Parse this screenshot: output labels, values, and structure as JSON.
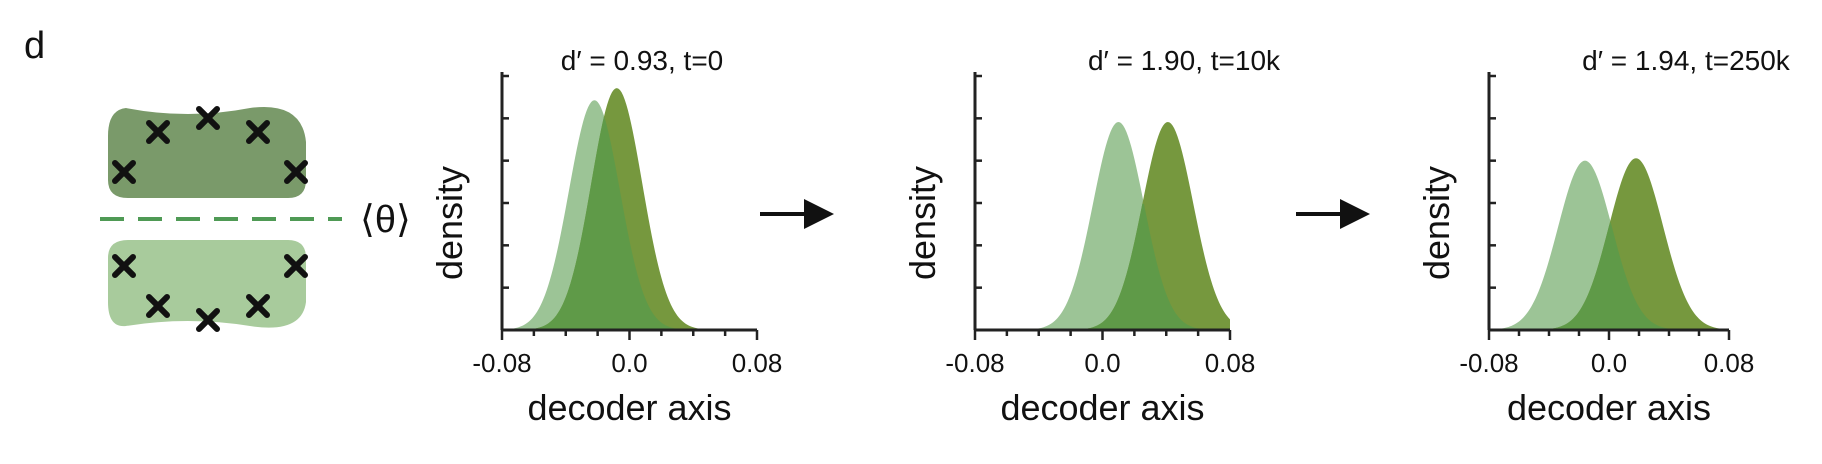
{
  "panel_label": "d",
  "schematic": {
    "boundary_label": "⟨θ⟩",
    "upper_color": "#7a9a6a",
    "lower_color": "#a8cb9c",
    "boundary_color": "#4f9a55",
    "marker_glyph": "cross-icon"
  },
  "arrow_glyph": "right-arrow-icon",
  "colors": {
    "class_a": "#9cc496",
    "class_b": "#76983e",
    "overlap": "#5f9a48"
  },
  "chart_data": [
    {
      "type": "area",
      "title": "d′ = 0.93, t=0",
      "xlabel": "decoder axis",
      "ylabel": "density",
      "xlim": [
        -0.08,
        0.08
      ],
      "xticks": [
        -0.08,
        0.0,
        0.08
      ],
      "xtick_labels": [
        "-0.08",
        "0.0",
        "0.08"
      ],
      "ylim": [
        0,
        1.05
      ],
      "y_minor_ticks": 6,
      "series": [
        {
          "mean": -0.022,
          "sd": 0.016,
          "peak": 0.95
        },
        {
          "mean": -0.008,
          "sd": 0.016,
          "peak": 1.0
        }
      ]
    },
    {
      "type": "area",
      "title": "d′ = 1.90, t=10k",
      "xlabel": "decoder axis",
      "ylabel": "density",
      "xlim": [
        -0.08,
        0.08
      ],
      "xticks": [
        -0.08,
        0.0,
        0.08
      ],
      "xtick_labels": [
        "-0.08",
        "0.0",
        "0.08"
      ],
      "ylim": [
        0,
        1.05
      ],
      "y_minor_ticks": 6,
      "series": [
        {
          "mean": 0.01,
          "sd": 0.016,
          "peak": 0.86
        },
        {
          "mean": 0.041,
          "sd": 0.016,
          "peak": 0.86
        }
      ]
    },
    {
      "type": "area",
      "title": "d′ = 1.94, t=250k",
      "xlabel": "decoder axis",
      "ylabel": "density",
      "xlim": [
        -0.08,
        0.08
      ],
      "xticks": [
        -0.08,
        0.0,
        0.08
      ],
      "xtick_labels": [
        "-0.08",
        "0.0",
        "0.08"
      ],
      "ylim": [
        0,
        1.05
      ],
      "y_minor_ticks": 6,
      "series": [
        {
          "mean": -0.016,
          "sd": 0.018,
          "peak": 0.7
        },
        {
          "mean": 0.018,
          "sd": 0.018,
          "peak": 0.71
        }
      ]
    }
  ]
}
